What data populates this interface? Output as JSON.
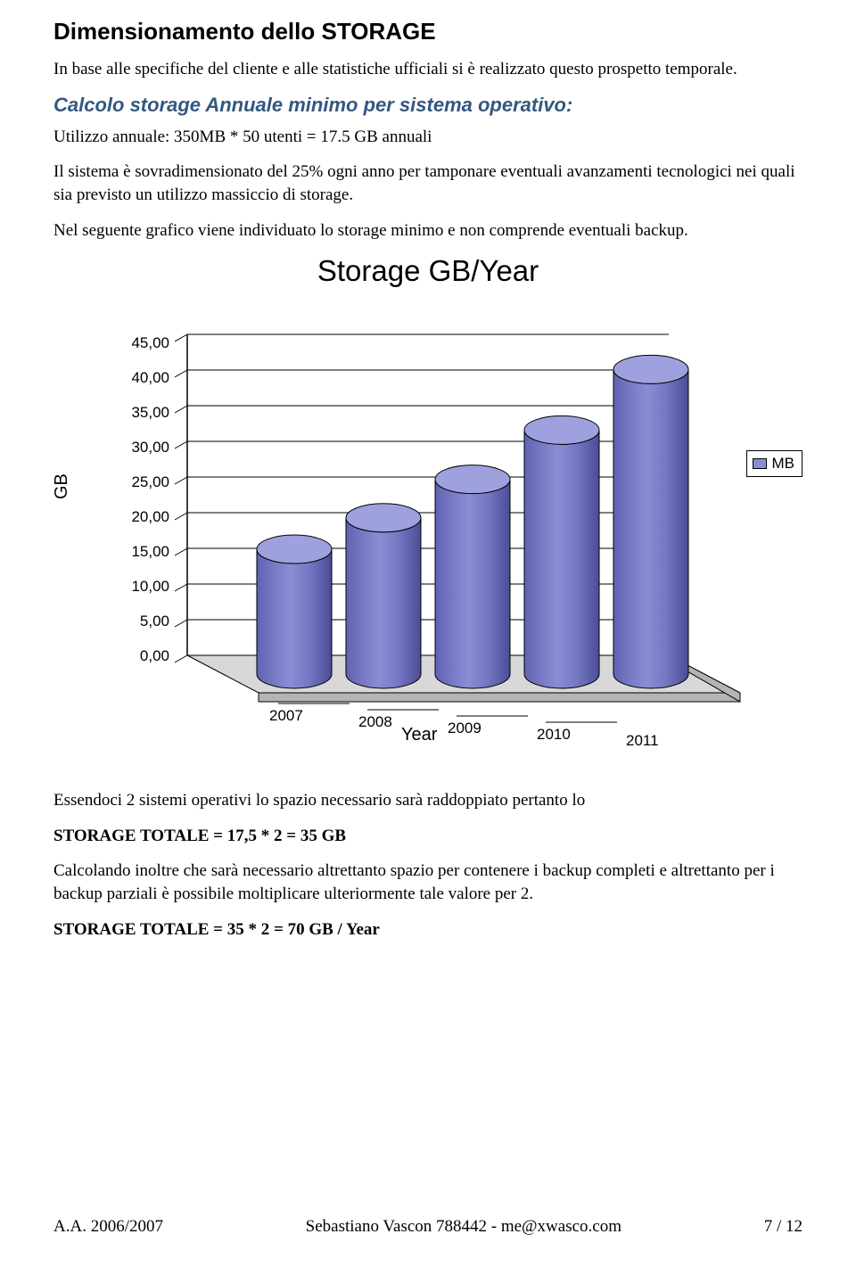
{
  "h1": "Dimensionamento dello STORAGE",
  "p1": "In base alle specifiche del cliente e alle statistiche ufficiali si è realizzato questo prospetto temporale.",
  "h2": "Calcolo storage Annuale minimo per sistema operativo:",
  "p2": "Utilizzo annuale: 350MB * 50 utenti = 17.5 GB annuali",
  "p3": "Il sistema è sovradimensionato del 25% ogni anno per tamponare eventuali avanzamenti tecnologici nei quali sia previsto un utilizzo massiccio di storage.",
  "p4": "Nel seguente grafico viene individuato lo storage minimo e non comprende eventuali backup.",
  "p5": "Essendoci 2 sistemi operativi lo spazio necessario sarà raddoppiato pertanto lo",
  "p6": "STORAGE TOTALE = 17,5 * 2 = 35 GB",
  "p7": "Calcolando inoltre che sarà necessario altrettanto spazio per contenere i backup completi e altrettanto per i backup parziali è possibile moltiplicare ulteriormente tale valore per 2.",
  "p8": "STORAGE TOTALE = 35 * 2 = 70 GB / Year",
  "footer": {
    "left": "A.A. 2006/2007",
    "center": "Sebastiano Vascon 788442 - me@xwasco.com",
    "right": "7 / 12"
  },
  "chart": {
    "title": "Storage GB/Year",
    "type": "3d-cylinder-bar",
    "x_axis_label": "Year",
    "y_axis_label": "GB",
    "categories": [
      "2007",
      "2008",
      "2009",
      "2010",
      "2011"
    ],
    "values": [
      17.5,
      21.9,
      27.3,
      34.2,
      42.7
    ],
    "y_ticks": [
      "0,00",
      "5,00",
      "10,00",
      "15,00",
      "20,00",
      "25,00",
      "30,00",
      "35,00",
      "40,00",
      "45,00"
    ],
    "y_max": 45,
    "legend_label": "MB",
    "colors": {
      "bar_light": "#8a8dd3",
      "bar_mid": "#7577c3",
      "bar_dark": "#5f62b3",
      "bar_shadow": "#4a4d95",
      "top_face": "#9fa1de",
      "floor_top": "#d8d8d8",
      "floor_front": "#b4b4b4",
      "grid": "#000000",
      "legend_swatch": "#8a8dd3",
      "bg": "#ffffff"
    },
    "label_fontsize": 17,
    "title_fontsize": 33
  }
}
